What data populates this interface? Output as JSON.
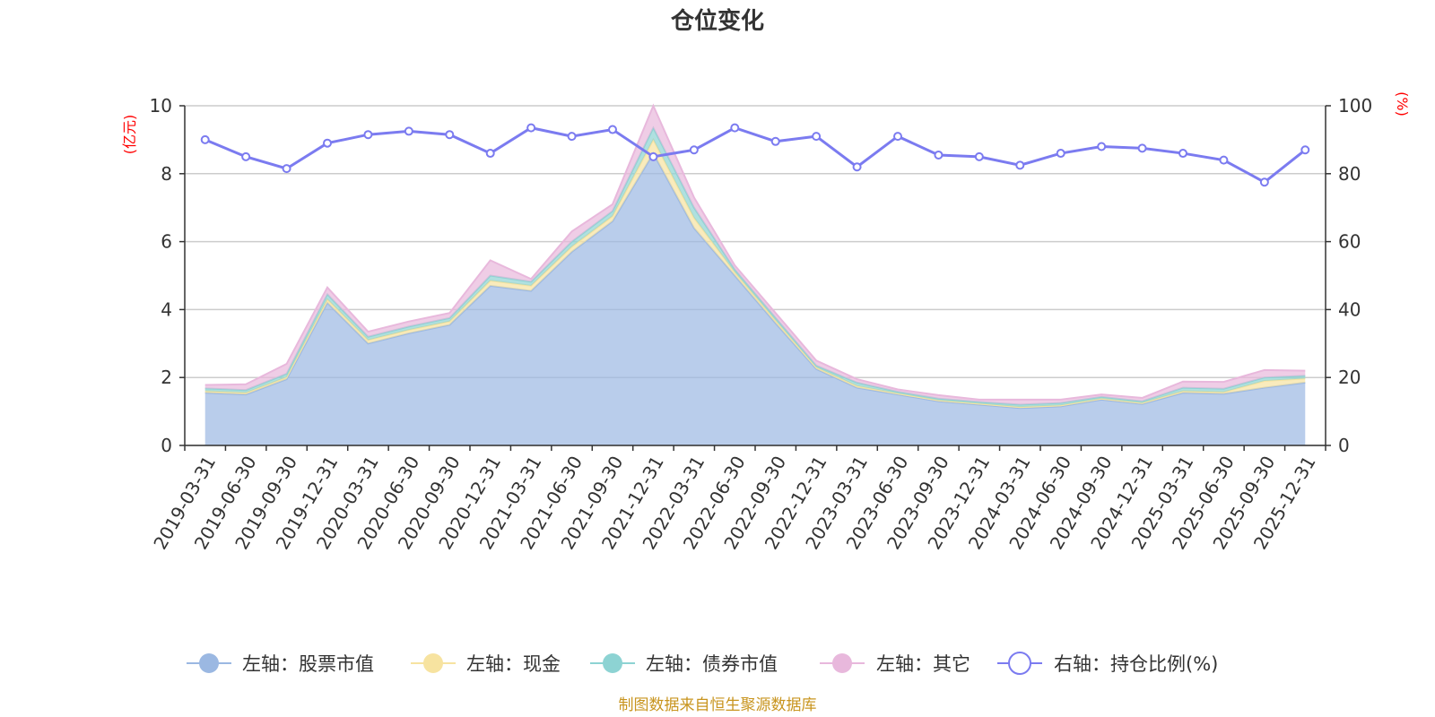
{
  "chart_data": {
    "type": "area",
    "title": "仓位变化",
    "left_axis_unit": "(亿元)",
    "right_axis_unit": "(%)",
    "ylim_left": [
      0,
      10
    ],
    "ylim_right": [
      0,
      100
    ],
    "left_ticks": [
      0,
      2,
      4,
      6,
      8,
      10
    ],
    "right_ticks": [
      0,
      20,
      40,
      60,
      80,
      100
    ],
    "categories": [
      "2019-03-31",
      "2019-06-30",
      "2019-09-30",
      "2019-12-31",
      "2020-03-31",
      "2020-06-30",
      "2020-09-30",
      "2020-12-31",
      "2021-03-31",
      "2021-06-30",
      "2021-09-30",
      "2021-12-31",
      "2022-03-31",
      "2022-06-30",
      "2022-09-30",
      "2022-12-31",
      "2023-03-31",
      "2023-06-30",
      "2023-09-30",
      "2023-12-31",
      "2024-03-31",
      "2024-06-30",
      "2024-09-30",
      "2024-12-31",
      "2025-03-31",
      "2025-06-30",
      "2025-09-30",
      "2025-12-31"
    ],
    "series": [
      {
        "name": "左轴：股票市值",
        "axis": "left",
        "stack": true,
        "color": "#9bb8e2",
        "values": [
          1.55,
          1.5,
          1.95,
          4.2,
          3.0,
          3.3,
          3.55,
          4.7,
          4.55,
          5.7,
          6.6,
          8.6,
          6.4,
          5.0,
          3.6,
          2.25,
          1.7,
          1.5,
          1.3,
          1.2,
          1.1,
          1.15,
          1.35,
          1.22,
          1.55,
          1.52,
          1.7,
          1.85
        ]
      },
      {
        "name": "左轴：现金",
        "axis": "left",
        "stack": true,
        "color": "#f7e3a0",
        "values": [
          0.05,
          0.05,
          0.06,
          0.1,
          0.1,
          0.1,
          0.1,
          0.15,
          0.15,
          0.15,
          0.15,
          0.4,
          0.3,
          0.1,
          0.08,
          0.05,
          0.05,
          0.03,
          0.03,
          0.03,
          0.03,
          0.03,
          0.03,
          0.03,
          0.05,
          0.05,
          0.2,
          0.12
        ]
      },
      {
        "name": "左轴：债券市值",
        "axis": "left",
        "stack": true,
        "color": "#8dd3d3",
        "values": [
          0.08,
          0.08,
          0.1,
          0.15,
          0.1,
          0.1,
          0.1,
          0.15,
          0.12,
          0.15,
          0.15,
          0.35,
          0.3,
          0.08,
          0.08,
          0.05,
          0.1,
          0.05,
          0.05,
          0.05,
          0.07,
          0.07,
          0.05,
          0.05,
          0.1,
          0.1,
          0.1,
          0.08
        ]
      },
      {
        "name": "左轴：其它",
        "axis": "left",
        "stack": true,
        "color": "#e8b8dc",
        "values": [
          0.1,
          0.17,
          0.29,
          0.2,
          0.15,
          0.15,
          0.15,
          0.45,
          0.08,
          0.3,
          0.2,
          0.65,
          0.3,
          0.12,
          0.14,
          0.15,
          0.1,
          0.07,
          0.1,
          0.07,
          0.15,
          0.1,
          0.07,
          0.1,
          0.18,
          0.2,
          0.22,
          0.15
        ]
      },
      {
        "name": "右轴：持仓比例(%)",
        "axis": "right",
        "stack": false,
        "color": "#7b7bf0",
        "values": [
          90,
          85,
          81.5,
          89,
          91.5,
          92.5,
          91.5,
          86,
          93.5,
          91,
          93,
          85,
          87,
          93.5,
          89.5,
          91,
          82,
          91,
          85.5,
          85,
          82.5,
          86,
          88,
          87.5,
          86,
          84,
          77.5,
          87
        ]
      }
    ]
  },
  "source_text": "制图数据来自恒生聚源数据库"
}
